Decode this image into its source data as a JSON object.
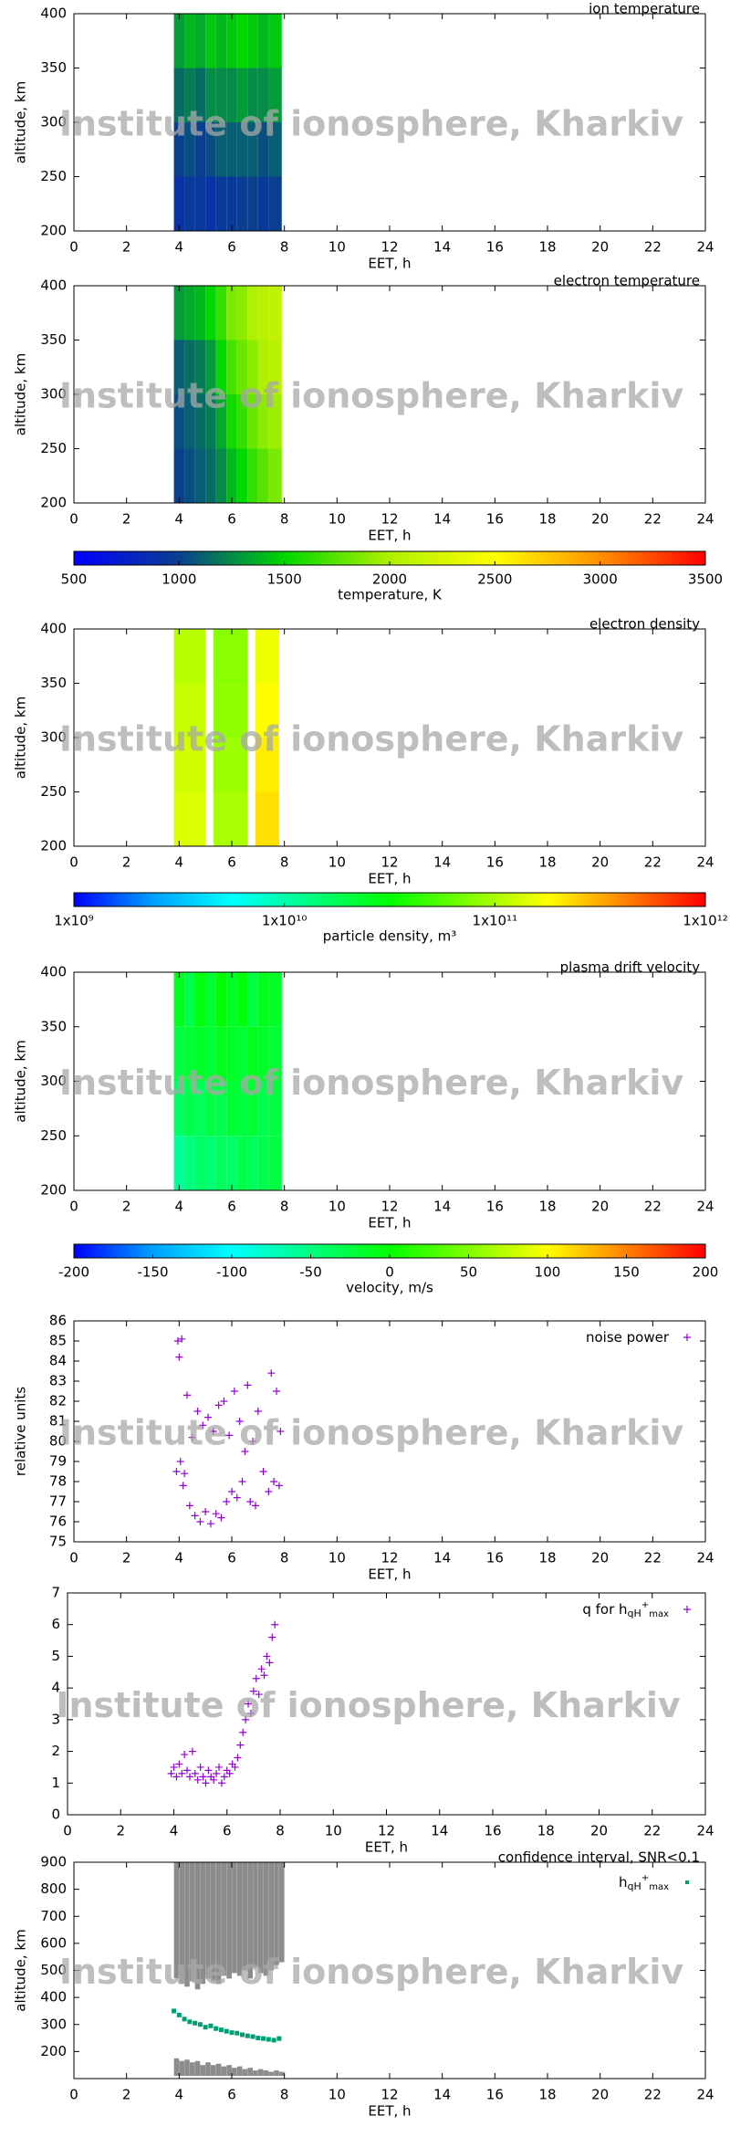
{
  "watermark": "Institute of ionosphere, Kharkiv",
  "chart_data": [
    {
      "type": "heatmap",
      "title": "ion temperature",
      "xlabel": "EET, h",
      "ylabel": "altitude, km",
      "xlim": [
        0,
        24
      ],
      "xticks": [
        0,
        2,
        4,
        6,
        8,
        10,
        12,
        14,
        16,
        18,
        20,
        22,
        24
      ],
      "ylim": [
        200,
        400
      ],
      "yticks": [
        200,
        250,
        300,
        350,
        400
      ],
      "x_bins": [
        3.8,
        4.2,
        4.6,
        5.0,
        5.4,
        5.8,
        6.2,
        6.6,
        7.0,
        7.4,
        7.9
      ],
      "y_bins": [
        200,
        250,
        300,
        350,
        400
      ],
      "z": [
        [
          900,
          950,
          950,
          900,
          950,
          950,
          1000,
          1000,
          950,
          1000
        ],
        [
          1000,
          1050,
          1000,
          1050,
          1100,
          1100,
          1100,
          1100,
          1050,
          1100
        ],
        [
          1150,
          1200,
          1150,
          1250,
          1250,
          1250,
          1300,
          1250,
          1250,
          1300
        ],
        [
          1300,
          1400,
          1350,
          1450,
          1400,
          1450,
          1500,
          1450,
          1400,
          1450
        ]
      ],
      "zlim": [
        500,
        3500
      ],
      "zlog": false,
      "palette": [
        "#0000ff",
        "#0a3f8f",
        "#00d800",
        "#b0f000",
        "#ffff00",
        "#ff9000",
        "#ff0000"
      ]
    },
    {
      "type": "heatmap",
      "title": "electron temperature",
      "xlabel": "EET, h",
      "ylabel": "altitude, km",
      "xlim": [
        0,
        24
      ],
      "xticks": [
        0,
        2,
        4,
        6,
        8,
        10,
        12,
        14,
        16,
        18,
        20,
        22,
        24
      ],
      "ylim": [
        200,
        400
      ],
      "yticks": [
        200,
        250,
        300,
        350,
        400
      ],
      "x_bins": [
        3.8,
        4.2,
        4.6,
        5.0,
        5.4,
        5.8,
        6.2,
        6.6,
        7.0,
        7.4,
        7.9
      ],
      "y_bins": [
        200,
        250,
        300,
        350,
        400
      ],
      "z": [
        [
          1000,
          1050,
          1100,
          1150,
          1250,
          1400,
          1500,
          1650,
          1750,
          1850
        ],
        [
          1050,
          1100,
          1150,
          1200,
          1350,
          1550,
          1650,
          1800,
          1900,
          1950
        ],
        [
          1100,
          1150,
          1200,
          1300,
          1500,
          1700,
          1800,
          1900,
          2000,
          2050
        ],
        [
          1300,
          1350,
          1400,
          1500,
          1650,
          1850,
          1900,
          2000,
          2050,
          2100
        ]
      ],
      "zlim": [
        500,
        3500
      ],
      "zlog": false,
      "palette": [
        "#0000ff",
        "#0a3f8f",
        "#00d800",
        "#b0f000",
        "#ffff00",
        "#ff9000",
        "#ff0000"
      ],
      "colorbar": {
        "label": "temperature, K",
        "ticks": [
          500,
          1000,
          1500,
          2000,
          2500,
          3000,
          3500
        ]
      }
    },
    {
      "type": "heatmap",
      "title": "electron density",
      "xlabel": "EET, h",
      "ylabel": "altitude, km",
      "xlim": [
        0,
        24
      ],
      "xticks": [
        0,
        2,
        4,
        6,
        8,
        10,
        12,
        14,
        16,
        18,
        20,
        22,
        24
      ],
      "ylim": [
        200,
        400
      ],
      "yticks": [
        200,
        250,
        300,
        350,
        400
      ],
      "x_bins": [
        3.8,
        5.0,
        5.3,
        6.6,
        6.9,
        7.8
      ],
      "y_bins": [
        200,
        250,
        300,
        350,
        400
      ],
      "z": [
        [
          140000000000,
          null,
          100000000000,
          null,
          220000000000
        ],
        [
          130000000000,
          null,
          90000000000,
          null,
          200000000000
        ],
        [
          120000000000,
          null,
          85000000000,
          null,
          180000000000
        ],
        [
          110000000000,
          null,
          80000000000,
          null,
          160000000000
        ]
      ],
      "zlim": [
        1000000000,
        1000000000000
      ],
      "zlog": true,
      "palette": [
        "#0000ff",
        "#00a0ff",
        "#00ffff",
        "#00ff80",
        "#00ff00",
        "#80ff00",
        "#ffff00",
        "#ff8000",
        "#ff0000"
      ],
      "colorbar": {
        "label": "particle density, m³",
        "ticks": [
          {
            "value": 1000000000,
            "label": "1x10⁹"
          },
          {
            "value": 10000000000,
            "label": "1x10¹⁰"
          },
          {
            "value": 100000000000,
            "label": "1x10¹¹"
          },
          {
            "value": 1000000000000,
            "label": "1x10¹²"
          }
        ]
      }
    },
    {
      "type": "heatmap",
      "title": "plasma drift velocity",
      "xlabel": "EET, h",
      "ylabel": "altitude, km",
      "xlim": [
        0,
        24
      ],
      "xticks": [
        0,
        2,
        4,
        6,
        8,
        10,
        12,
        14,
        16,
        18,
        20,
        22,
        24
      ],
      "ylim": [
        200,
        400
      ],
      "yticks": [
        200,
        250,
        300,
        350,
        400
      ],
      "x_bins": [
        3.8,
        4.2,
        4.6,
        5.0,
        5.4,
        5.8,
        6.2,
        6.6,
        7.0,
        7.4,
        7.9
      ],
      "y_bins": [
        200,
        250,
        300,
        350,
        400
      ],
      "z": [
        [
          -60,
          -50,
          -40,
          -45,
          -35,
          -40,
          -30,
          -35,
          -30,
          -25
        ],
        [
          -40,
          -30,
          -35,
          -25,
          -30,
          -20,
          -25,
          -20,
          -30,
          -25
        ],
        [
          -25,
          -20,
          -15,
          -20,
          -10,
          -15,
          -20,
          -10,
          -15,
          -20
        ],
        [
          -10,
          -30,
          -5,
          -20,
          0,
          -15,
          -5,
          -25,
          -10,
          -15
        ]
      ],
      "zlim": [
        -200,
        200
      ],
      "zlog": false,
      "palette": [
        "#0000ff",
        "#00a0ff",
        "#00ffff",
        "#00ff80",
        "#00ff00",
        "#80ff00",
        "#ffff00",
        "#ff8000",
        "#ff0000"
      ],
      "colorbar": {
        "label": "velocity, m/s",
        "ticks": [
          -200,
          -150,
          -100,
          -50,
          0,
          50,
          100,
          150,
          200
        ]
      }
    },
    {
      "type": "scatter",
      "xlabel": "EET, h",
      "ylabel": "relative units",
      "xlim": [
        0,
        24
      ],
      "xticks": [
        0,
        2,
        4,
        6,
        8,
        10,
        12,
        14,
        16,
        18,
        20,
        22,
        24
      ],
      "ylim": [
        75,
        86
      ],
      "yticks": [
        75,
        76,
        77,
        78,
        79,
        80,
        81,
        82,
        83,
        84,
        85,
        86
      ],
      "series": [
        {
          "name": [
            "noise power"
          ],
          "color": "#9400d3",
          "x": [
            3.9,
            3.95,
            4.0,
            4.05,
            4.1,
            4.15,
            4.2,
            4.3,
            4.4,
            4.5,
            4.6,
            4.7,
            4.8,
            4.9,
            5.0,
            5.1,
            5.2,
            5.3,
            5.4,
            5.5,
            5.6,
            5.7,
            5.8,
            5.9,
            6.0,
            6.1,
            6.2,
            6.3,
            6.4,
            6.5,
            6.6,
            6.7,
            6.8,
            6.9,
            7.0,
            7.2,
            7.4,
            7.5,
            7.6,
            7.7,
            7.8,
            7.85
          ],
          "values": [
            78.5,
            85.0,
            84.2,
            79.0,
            85.1,
            77.8,
            78.4,
            82.3,
            76.8,
            80.2,
            76.3,
            81.5,
            76.0,
            80.8,
            76.5,
            81.2,
            75.9,
            80.5,
            76.4,
            81.8,
            76.2,
            82.0,
            77.0,
            80.3,
            77.5,
            82.5,
            77.2,
            81.0,
            78.0,
            79.5,
            82.8,
            77.0,
            80.0,
            76.8,
            81.5,
            78.5,
            77.5,
            83.4,
            78.0,
            82.5,
            77.8,
            80.5
          ]
        }
      ]
    },
    {
      "type": "scatter",
      "xlabel": "EET, h",
      "xlim": [
        0,
        24
      ],
      "xticks": [
        0,
        2,
        4,
        6,
        8,
        10,
        12,
        14,
        16,
        18,
        20,
        22,
        24
      ],
      "ylim": [
        0,
        7
      ],
      "yticks": [
        0,
        1,
        2,
        3,
        4,
        5,
        6,
        7
      ],
      "series": [
        {
          "name": [
            "q for h",
            "qH",
            "+",
            "max"
          ],
          "color": "#9400d3",
          "x": [
            3.9,
            4.0,
            4.1,
            4.2,
            4.3,
            4.4,
            4.5,
            4.6,
            4.7,
            4.8,
            4.9,
            5.0,
            5.1,
            5.2,
            5.3,
            5.4,
            5.5,
            5.6,
            5.7,
            5.8,
            5.9,
            6.0,
            6.1,
            6.2,
            6.3,
            6.4,
            6.5,
            6.6,
            6.7,
            6.8,
            6.9,
            7.0,
            7.1,
            7.2,
            7.3,
            7.4,
            7.5,
            7.6,
            7.7,
            7.8
          ],
          "values": [
            1.3,
            1.5,
            1.2,
            1.6,
            1.3,
            1.9,
            1.4,
            1.2,
            2.0,
            1.3,
            1.1,
            1.5,
            1.2,
            1.0,
            1.4,
            1.2,
            1.1,
            1.3,
            1.5,
            1.0,
            1.2,
            1.4,
            1.3,
            1.6,
            1.5,
            1.8,
            2.2,
            2.6,
            3.0,
            3.5,
            3.2,
            3.9,
            4.3,
            3.8,
            4.6,
            4.4,
            5.0,
            4.8,
            5.6,
            6.0
          ]
        }
      ]
    },
    {
      "type": "interval",
      "title": "confidence interval, SNR<0.1",
      "xlabel": "EET, h",
      "ylabel": "altitude, km",
      "xlim": [
        0,
        24
      ],
      "xticks": [
        0,
        2,
        4,
        6,
        8,
        10,
        12,
        14,
        16,
        18,
        20,
        22,
        24
      ],
      "ylim": [
        100,
        900
      ],
      "yticks": [
        200,
        300,
        400,
        500,
        600,
        700,
        800,
        900
      ],
      "bars": [
        {
          "color": "#8c8c8c",
          "x": [
            3.9,
            4.1,
            4.3,
            4.5,
            4.7,
            4.9,
            5.1,
            5.3,
            5.5,
            5.7,
            5.9,
            6.1,
            6.3,
            6.5,
            6.7,
            6.9,
            7.1,
            7.3,
            7.5,
            7.7,
            7.9
          ],
          "low": [
            470,
            450,
            440,
            460,
            430,
            450,
            470,
            460,
            450,
            480,
            470,
            490,
            480,
            500,
            470,
            510,
            490,
            480,
            500,
            520,
            530
          ],
          "high": [
            900,
            900,
            900,
            900,
            900,
            900,
            900,
            900,
            900,
            900,
            900,
            900,
            900,
            900,
            900,
            900,
            900,
            900,
            900,
            900,
            900
          ]
        },
        {
          "color": "#8c8c8c",
          "x": [
            3.9,
            4.1,
            4.3,
            4.5,
            4.7,
            4.9,
            5.1,
            5.3,
            5.5,
            5.7,
            5.9,
            6.1,
            6.3,
            6.5,
            6.7,
            6.9,
            7.1,
            7.3,
            7.5,
            7.7,
            7.9
          ],
          "low": [
            110,
            110,
            110,
            110,
            110,
            110,
            110,
            110,
            110,
            110,
            110,
            110,
            110,
            110,
            110,
            110,
            110,
            110,
            110,
            110,
            110
          ],
          "high": [
            175,
            165,
            170,
            160,
            165,
            150,
            160,
            150,
            155,
            145,
            150,
            140,
            145,
            135,
            140,
            130,
            135,
            130,
            125,
            130,
            125
          ]
        }
      ],
      "series": [
        {
          "name": [
            "h",
            "qH",
            "+",
            "max"
          ],
          "color": "#009e73",
          "x": [
            3.8,
            4.0,
            4.2,
            4.4,
            4.6,
            4.8,
            5.0,
            5.2,
            5.4,
            5.6,
            5.8,
            6.0,
            6.2,
            6.4,
            6.6,
            6.8,
            7.0,
            7.2,
            7.4,
            7.6,
            7.8
          ],
          "values": [
            350,
            335,
            320,
            310,
            305,
            300,
            290,
            295,
            285,
            280,
            275,
            270,
            268,
            262,
            258,
            255,
            250,
            248,
            245,
            242,
            248
          ]
        }
      ]
    }
  ]
}
